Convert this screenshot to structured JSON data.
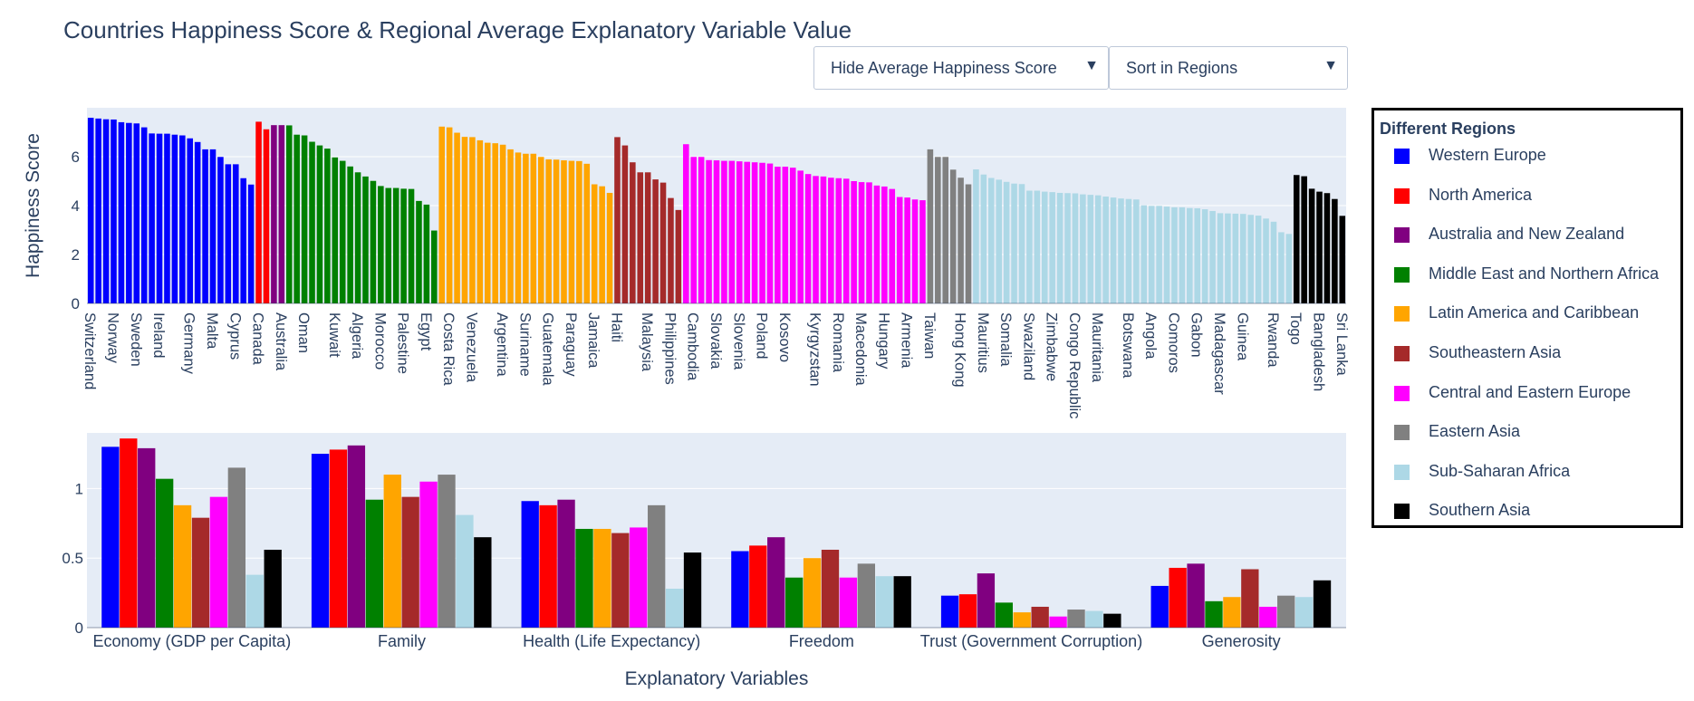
{
  "title": "Countries Happiness Score & Regional Average Explanatory Variable Value",
  "controls": {
    "avg_dropdown": "Hide Average Happiness Score",
    "sort_dropdown": "Sort in Regions"
  },
  "legend": {
    "title": "Different Regions",
    "items": [
      {
        "name": "Western Europe",
        "color": "#0000ff"
      },
      {
        "name": "North America",
        "color": "#ff0000"
      },
      {
        "name": "Australia and New Zealand",
        "color": "#800080"
      },
      {
        "name": "Middle East and Northern Africa",
        "color": "#008000"
      },
      {
        "name": "Latin America and Caribbean",
        "color": "#ffa500"
      },
      {
        "name": "Southeastern Asia",
        "color": "#a52a2a"
      },
      {
        "name": "Central and Eastern Europe",
        "color": "#ff00ff"
      },
      {
        "name": "Eastern Asia",
        "color": "#808080"
      },
      {
        "name": "Sub-Saharan Africa",
        "color": "#add8e6"
      },
      {
        "name": "Southern Asia",
        "color": "#000000"
      }
    ]
  },
  "chart_data": [
    {
      "type": "bar",
      "ylabel": "Happiness Score",
      "ylim": [
        0,
        8
      ],
      "yticks": [
        0,
        2,
        4,
        6
      ],
      "groups": [
        {
          "region": "Western Europe",
          "values": [
            7.59,
            7.56,
            7.53,
            7.52,
            7.41,
            7.38,
            7.36,
            7.2,
            6.95,
            6.94,
            6.94,
            6.9,
            6.87,
            6.75,
            6.6,
            6.3,
            6.3,
            5.99,
            5.69,
            5.69,
            5.12,
            4.86
          ]
        },
        {
          "region": "North America",
          "values": [
            7.43,
            7.12
          ]
        },
        {
          "region": "Australia and New Zealand",
          "values": [
            7.29,
            7.29
          ]
        },
        {
          "region": "Middle East and Northern Africa",
          "values": [
            7.28,
            6.9,
            6.87,
            6.61,
            6.46,
            6.33,
            5.97,
            5.83,
            5.6,
            5.36,
            5.19,
            5.01,
            4.8,
            4.72,
            4.72,
            4.69,
            4.68,
            4.19,
            4.04,
            2.98
          ]
        },
        {
          "region": "Latin America and Caribbean",
          "values": [
            7.23,
            7.2,
            6.98,
            6.81,
            6.8,
            6.67,
            6.57,
            6.55,
            6.49,
            6.3,
            6.17,
            6.12,
            6.12,
            5.99,
            5.89,
            5.88,
            5.85,
            5.83,
            5.82,
            5.71,
            4.87,
            4.79,
            4.52
          ]
        },
        {
          "region": "Southeastern Asia",
          "values": [
            6.8,
            6.46,
            5.77,
            5.36,
            5.36,
            5.07,
            4.94,
            4.31,
            3.82
          ]
        },
        {
          "region": "Central and Eastern Europe",
          "values": [
            6.51,
            5.99,
            5.99,
            5.86,
            5.85,
            5.83,
            5.83,
            5.81,
            5.79,
            5.77,
            5.75,
            5.72,
            5.59,
            5.59,
            5.55,
            5.43,
            5.29,
            5.21,
            5.19,
            5.14,
            5.12,
            5.1,
            5.0,
            4.96,
            4.95,
            4.82,
            4.78,
            4.68,
            4.35,
            4.33,
            4.25,
            4.22
          ]
        },
        {
          "region": "Eastern Asia",
          "values": [
            6.3,
            5.99,
            5.99,
            5.47,
            5.14,
            4.87
          ]
        },
        {
          "region": "Sub-Saharan Africa",
          "values": [
            5.48,
            5.27,
            5.13,
            5.06,
            4.97,
            4.9,
            4.88,
            4.61,
            4.61,
            4.57,
            4.55,
            4.52,
            4.51,
            4.5,
            4.46,
            4.44,
            4.42,
            4.37,
            4.33,
            4.29,
            4.27,
            4.25,
            4.01,
            3.99,
            3.99,
            3.96,
            3.93,
            3.93,
            3.9,
            3.89,
            3.85,
            3.78,
            3.69,
            3.68,
            3.67,
            3.66,
            3.62,
            3.59,
            3.47,
            3.34,
            2.91,
            2.84
          ]
        },
        {
          "region": "Southern Asia",
          "values": [
            5.25,
            5.2,
            4.69,
            4.57,
            4.51,
            4.27,
            3.58
          ]
        }
      ],
      "x_tick_labels": [
        "Switzerland",
        "Norway",
        "Sweden",
        "Ireland",
        "Germany",
        "Malta",
        "Cyprus",
        "Canada",
        "Australia",
        "Oman",
        "Kuwait",
        "Algeria",
        "Morocco",
        "Palestine",
        "Egypt",
        "Costa Rica",
        "Venezuela",
        "Argentina",
        "Suriname",
        "Guatemala",
        "Paraguay",
        "Jamaica",
        "Haiti",
        "Malaysia",
        "Philippines",
        "Cambodia",
        "Slovakia",
        "Slovenia",
        "Poland",
        "Kosovo",
        "Kyrgyzstan",
        "Romania",
        "Macedonia",
        "Hungary",
        "Armenia",
        "Taiwan",
        "Hong Kong",
        "Mauritius",
        "Somalia",
        "Swaziland",
        "Zimbabwe",
        "Congo Republic",
        "Mauritania",
        "Botswana",
        "Angola",
        "Comoros",
        "Gabon",
        "Madagascar",
        "Guinea",
        "Rwanda",
        "Togo",
        "Bangladesh",
        "Sri Lanka"
      ]
    },
    {
      "type": "bar",
      "xlabel": "Explanatory Variables",
      "ylim": [
        0,
        1.4
      ],
      "yticks": [
        0,
        0.5,
        1
      ],
      "ytick_labels": [
        "0",
        "0.5",
        "1"
      ],
      "categories": [
        "Economy (GDP per Capita)",
        "Family",
        "Health (Life Expectancy)",
        "Freedom",
        "Trust (Government Corruption)",
        "Generosity"
      ],
      "series": [
        {
          "name": "Western Europe",
          "values": [
            1.3,
            1.25,
            0.91,
            0.55,
            0.23,
            0.3
          ]
        },
        {
          "name": "North America",
          "values": [
            1.36,
            1.28,
            0.88,
            0.59,
            0.24,
            0.43
          ]
        },
        {
          "name": "Australia and New Zealand",
          "values": [
            1.29,
            1.31,
            0.92,
            0.65,
            0.39,
            0.46
          ]
        },
        {
          "name": "Middle East and Northern Africa",
          "values": [
            1.07,
            0.92,
            0.71,
            0.36,
            0.18,
            0.19
          ]
        },
        {
          "name": "Latin America and Caribbean",
          "values": [
            0.88,
            1.1,
            0.71,
            0.5,
            0.11,
            0.22
          ]
        },
        {
          "name": "Southeastern Asia",
          "values": [
            0.79,
            0.94,
            0.68,
            0.56,
            0.15,
            0.42
          ]
        },
        {
          "name": "Central and Eastern Europe",
          "values": [
            0.94,
            1.05,
            0.72,
            0.36,
            0.08,
            0.15
          ]
        },
        {
          "name": "Eastern Asia",
          "values": [
            1.15,
            1.1,
            0.88,
            0.46,
            0.13,
            0.23
          ]
        },
        {
          "name": "Sub-Saharan Africa",
          "values": [
            0.38,
            0.81,
            0.28,
            0.37,
            0.12,
            0.22
          ]
        },
        {
          "name": "Southern Asia",
          "values": [
            0.56,
            0.65,
            0.54,
            0.37,
            0.1,
            0.34
          ]
        }
      ]
    }
  ]
}
